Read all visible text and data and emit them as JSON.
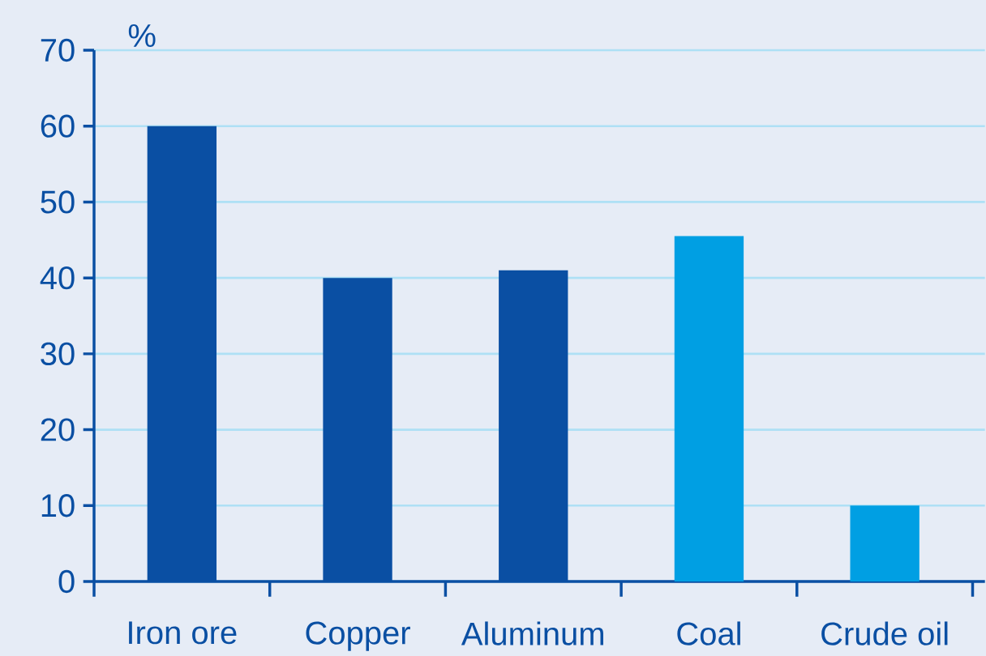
{
  "chart_data": {
    "type": "bar",
    "ylabel": "%",
    "categories": [
      "Iron ore",
      "Copper",
      "Aluminum",
      "Coal",
      "Crude oil"
    ],
    "values": [
      60,
      40,
      41,
      45.5,
      10
    ],
    "colors": [
      "#0a4fa3",
      "#0a4fa3",
      "#0a4fa3",
      "#009fe3",
      "#009fe3"
    ],
    "ylim": [
      0,
      70
    ],
    "yticks": [
      0,
      10,
      20,
      30,
      40,
      50,
      60,
      70
    ],
    "grid": "y"
  }
}
